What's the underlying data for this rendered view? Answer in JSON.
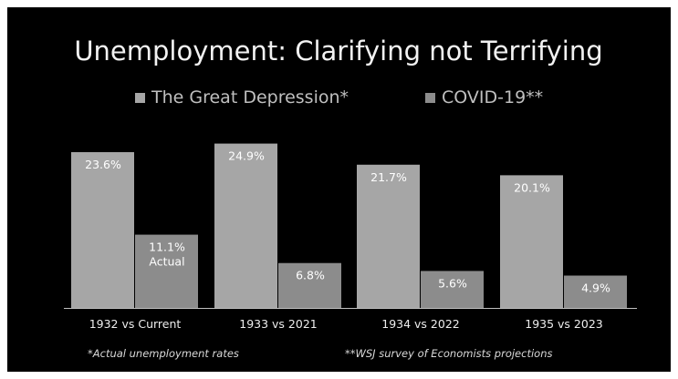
{
  "chart_data": {
    "type": "bar",
    "title": "Unemployment: Clarifying not Terrifying",
    "categories": [
      "1932 vs Current",
      "1933 vs 2021",
      "1934 vs 2022",
      "1935 vs 2023"
    ],
    "series": [
      {
        "name": "The Great Depression*",
        "values": [
          23.6,
          24.9,
          21.7,
          20.1
        ],
        "labels": [
          "23.6%",
          "24.9%",
          "21.7%",
          "20.1%"
        ],
        "color": "#a6a6a6"
      },
      {
        "name": "COVID-19**",
        "values": [
          11.1,
          6.8,
          5.6,
          4.9
        ],
        "labels": [
          "11.1%\nActual",
          "6.8%",
          "5.6%",
          "4.9%"
        ],
        "color": "#8c8c8c"
      }
    ],
    "ylim": [
      0,
      26.5
    ],
    "grid": false,
    "legend": "top-center",
    "xlabel": "",
    "ylabel": "",
    "footnotes": [
      "*Actual unemployment rates",
      "**WSJ survey of Economists projections"
    ]
  },
  "colors": {
    "background": "#000000",
    "axis": "#bfbfbf"
  }
}
